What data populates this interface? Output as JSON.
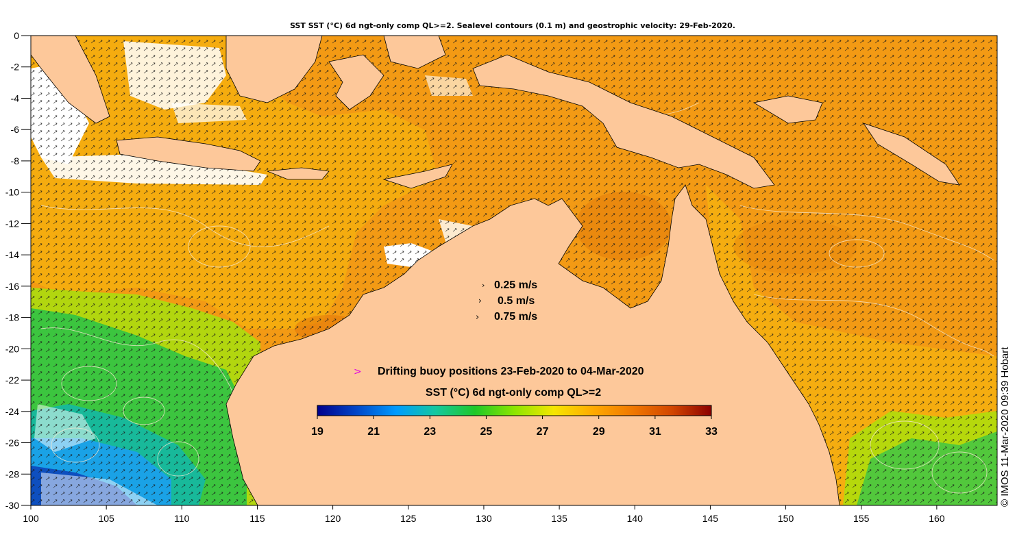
{
  "title": "SST SST (°C) 6d ngt-only comp QL>=2. Sealevel contours (0.1 m) and geostrophic velocity: 29-Feb-2020.",
  "credit": "© IMOS 11-Mar-2020 09:39 Hobart",
  "velocity_legend": [
    {
      "label": "0.25 m/s"
    },
    {
      "label": "0.5 m/s"
    },
    {
      "label": "0.75 m/s"
    }
  ],
  "buoy_marker": ">",
  "buoy_legend": "Drifting buoy positions 23-Feb-2020 to 04-Mar-2020",
  "colorbar": {
    "title": "SST (°C) 6d ngt-only comp QL>=2",
    "ticks": [
      "19",
      "21",
      "23",
      "25",
      "27",
      "29",
      "31",
      "33"
    ],
    "min": 19,
    "max": 33,
    "colors": [
      "#00008c",
      "#0046c8",
      "#009bff",
      "#14c8a0",
      "#1ec828",
      "#8ce600",
      "#f5e600",
      "#ffaa00",
      "#f07800",
      "#d24600",
      "#8c0000"
    ]
  },
  "x_axis": {
    "ticks": [
      "100",
      "105",
      "110",
      "115",
      "120",
      "125",
      "130",
      "135",
      "140",
      "145",
      "150",
      "155",
      "160"
    ],
    "min": 100,
    "max": 164
  },
  "y_axis": {
    "ticks": [
      "0",
      "-2",
      "-4",
      "-6",
      "-8",
      "-10",
      "-12",
      "-14",
      "-16",
      "-18",
      "-20",
      "-22",
      "-24",
      "-26",
      "-28",
      "-30"
    ],
    "min": -30,
    "max": 0
  },
  "colors": {
    "land": "#fdc89a",
    "ocean_warm": "#f39a14",
    "ocean_yellow": "#f3c30e",
    "ocean_cool": "#3fc34a",
    "ocean_cold": "#1a9ade",
    "cloud": "#ffffff",
    "buoy_marker": "#e000e0"
  }
}
